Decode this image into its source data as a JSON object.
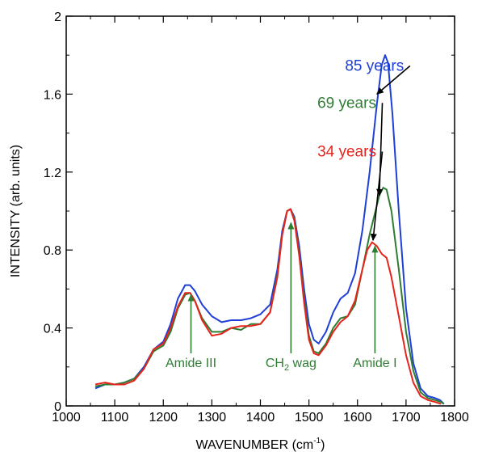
{
  "chart_data": {
    "type": "line",
    "xlabel": "WAVENUMBER (cm",
    "xlabel_sup": "-1",
    "xlabel_close": ")",
    "ylabel": "INTENSITY (arb. units)",
    "xlim": [
      1000,
      1800
    ],
    "ylim": [
      0,
      2
    ],
    "x_ticks": [
      1000,
      1100,
      1200,
      1300,
      1400,
      1500,
      1600,
      1700,
      1800
    ],
    "y_ticks": [
      0,
      0.4,
      0.8,
      1.2,
      1.6,
      2
    ],
    "y_tick_labels": [
      "0",
      "0.4",
      "0.8",
      "1.2",
      "1.6",
      "2"
    ],
    "grid": false,
    "series": [
      {
        "name": "85 years",
        "color": "#1f3fd6",
        "points": [
          [
            1060,
            0.09
          ],
          [
            1080,
            0.11
          ],
          [
            1100,
            0.11
          ],
          [
            1120,
            0.12
          ],
          [
            1140,
            0.14
          ],
          [
            1160,
            0.2
          ],
          [
            1180,
            0.29
          ],
          [
            1200,
            0.33
          ],
          [
            1215,
            0.42
          ],
          [
            1230,
            0.55
          ],
          [
            1245,
            0.62
          ],
          [
            1255,
            0.62
          ],
          [
            1265,
            0.59
          ],
          [
            1280,
            0.52
          ],
          [
            1300,
            0.46
          ],
          [
            1320,
            0.43
          ],
          [
            1340,
            0.44
          ],
          [
            1360,
            0.44
          ],
          [
            1380,
            0.45
          ],
          [
            1400,
            0.47
          ],
          [
            1420,
            0.52
          ],
          [
            1435,
            0.7
          ],
          [
            1445,
            0.9
          ],
          [
            1455,
            1.0
          ],
          [
            1462,
            1.01
          ],
          [
            1470,
            0.97
          ],
          [
            1480,
            0.82
          ],
          [
            1490,
            0.6
          ],
          [
            1500,
            0.42
          ],
          [
            1510,
            0.34
          ],
          [
            1520,
            0.32
          ],
          [
            1535,
            0.38
          ],
          [
            1550,
            0.48
          ],
          [
            1565,
            0.55
          ],
          [
            1580,
            0.58
          ],
          [
            1595,
            0.68
          ],
          [
            1610,
            0.9
          ],
          [
            1625,
            1.2
          ],
          [
            1640,
            1.55
          ],
          [
            1650,
            1.75
          ],
          [
            1657,
            1.8
          ],
          [
            1663,
            1.76
          ],
          [
            1672,
            1.5
          ],
          [
            1685,
            1.0
          ],
          [
            1700,
            0.5
          ],
          [
            1715,
            0.22
          ],
          [
            1730,
            0.09
          ],
          [
            1745,
            0.05
          ],
          [
            1760,
            0.04
          ],
          [
            1770,
            0.03
          ],
          [
            1778,
            0.01
          ]
        ]
      },
      {
        "name": "69 years",
        "color": "#2e7d32",
        "points": [
          [
            1060,
            0.1
          ],
          [
            1080,
            0.11
          ],
          [
            1100,
            0.11
          ],
          [
            1120,
            0.12
          ],
          [
            1140,
            0.14
          ],
          [
            1160,
            0.19
          ],
          [
            1180,
            0.28
          ],
          [
            1200,
            0.31
          ],
          [
            1215,
            0.38
          ],
          [
            1230,
            0.5
          ],
          [
            1245,
            0.57
          ],
          [
            1255,
            0.58
          ],
          [
            1265,
            0.54
          ],
          [
            1280,
            0.45
          ],
          [
            1300,
            0.38
          ],
          [
            1320,
            0.38
          ],
          [
            1340,
            0.4
          ],
          [
            1360,
            0.39
          ],
          [
            1380,
            0.42
          ],
          [
            1400,
            0.42
          ],
          [
            1420,
            0.48
          ],
          [
            1435,
            0.67
          ],
          [
            1445,
            0.88
          ],
          [
            1455,
            1.0
          ],
          [
            1462,
            1.01
          ],
          [
            1470,
            0.96
          ],
          [
            1480,
            0.78
          ],
          [
            1490,
            0.55
          ],
          [
            1500,
            0.36
          ],
          [
            1510,
            0.28
          ],
          [
            1520,
            0.27
          ],
          [
            1535,
            0.32
          ],
          [
            1550,
            0.4
          ],
          [
            1565,
            0.45
          ],
          [
            1580,
            0.46
          ],
          [
            1595,
            0.52
          ],
          [
            1610,
            0.7
          ],
          [
            1625,
            0.88
          ],
          [
            1635,
            0.98
          ],
          [
            1645,
            1.08
          ],
          [
            1653,
            1.12
          ],
          [
            1660,
            1.11
          ],
          [
            1670,
            1.0
          ],
          [
            1685,
            0.7
          ],
          [
            1700,
            0.38
          ],
          [
            1715,
            0.18
          ],
          [
            1730,
            0.07
          ],
          [
            1745,
            0.04
          ],
          [
            1760,
            0.03
          ],
          [
            1772,
            0.02
          ],
          [
            1778,
            0.01
          ]
        ]
      },
      {
        "name": "34 years",
        "color": "#e8231b",
        "points": [
          [
            1060,
            0.11
          ],
          [
            1080,
            0.12
          ],
          [
            1100,
            0.11
          ],
          [
            1120,
            0.11
          ],
          [
            1140,
            0.13
          ],
          [
            1160,
            0.19
          ],
          [
            1180,
            0.29
          ],
          [
            1200,
            0.32
          ],
          [
            1215,
            0.4
          ],
          [
            1230,
            0.51
          ],
          [
            1245,
            0.58
          ],
          [
            1255,
            0.58
          ],
          [
            1265,
            0.54
          ],
          [
            1280,
            0.44
          ],
          [
            1300,
            0.36
          ],
          [
            1320,
            0.37
          ],
          [
            1340,
            0.4
          ],
          [
            1360,
            0.41
          ],
          [
            1380,
            0.41
          ],
          [
            1400,
            0.42
          ],
          [
            1420,
            0.48
          ],
          [
            1435,
            0.66
          ],
          [
            1445,
            0.88
          ],
          [
            1455,
            1.0
          ],
          [
            1462,
            1.01
          ],
          [
            1470,
            0.95
          ],
          [
            1480,
            0.77
          ],
          [
            1490,
            0.53
          ],
          [
            1500,
            0.34
          ],
          [
            1510,
            0.27
          ],
          [
            1520,
            0.26
          ],
          [
            1535,
            0.31
          ],
          [
            1550,
            0.38
          ],
          [
            1565,
            0.43
          ],
          [
            1580,
            0.46
          ],
          [
            1595,
            0.54
          ],
          [
            1610,
            0.7
          ],
          [
            1620,
            0.8
          ],
          [
            1630,
            0.84
          ],
          [
            1640,
            0.82
          ],
          [
            1650,
            0.78
          ],
          [
            1660,
            0.76
          ],
          [
            1670,
            0.66
          ],
          [
            1685,
            0.46
          ],
          [
            1700,
            0.26
          ],
          [
            1715,
            0.12
          ],
          [
            1730,
            0.05
          ],
          [
            1745,
            0.03
          ],
          [
            1760,
            0.02
          ],
          [
            1772,
            0.01
          ]
        ]
      }
    ],
    "series_labels": [
      {
        "text": "85 years",
        "color": "#1f3fd6",
        "x": 1635,
        "y": 1.72,
        "arrow_to": [
          1640,
          1.6
        ]
      },
      {
        "text": "69 years",
        "color": "#2e7d32",
        "x": 1578,
        "y": 1.53,
        "arrow_to": [
          1645,
          1.08
        ]
      },
      {
        "text": "34 years",
        "color": "#e8231b",
        "x": 1578,
        "y": 1.28,
        "arrow_to": [
          1632,
          0.85
        ]
      }
    ],
    "annotations": [
      {
        "text": "Amide III",
        "x": 1257,
        "y_text": 0.2,
        "arrow_from": 0.27,
        "arrow_to": 0.57
      },
      {
        "text": "CH",
        "sub": "2",
        "suffix": " wag",
        "x": 1463,
        "y_text": 0.2,
        "arrow_from": 0.27,
        "arrow_to": 0.94
      },
      {
        "text": "Amide I",
        "x": 1636,
        "y_text": 0.2,
        "arrow_from": 0.27,
        "arrow_to": 0.82
      }
    ],
    "annotation_color": "#2e7d32"
  }
}
